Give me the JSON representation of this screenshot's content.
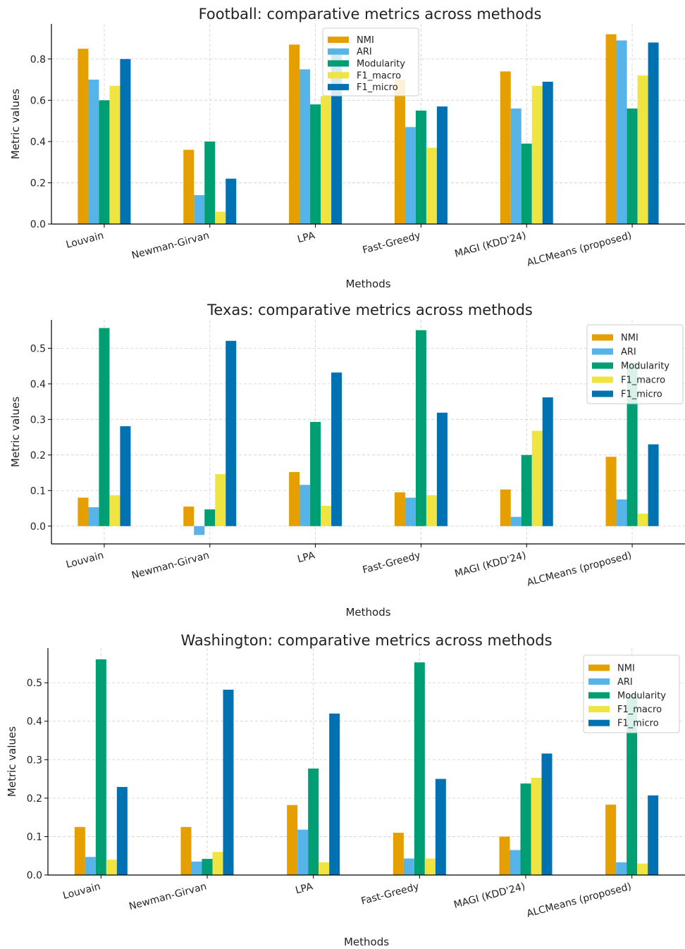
{
  "chart_data": [
    {
      "type": "bar",
      "title": "Football: comparative metrics across methods",
      "xlabel": "Methods",
      "ylabel": "Metric values",
      "categories": [
        "Louvain",
        "Newman-Girvan",
        "LPA",
        "Fast-Greedy",
        "MAGI (KDD'24)",
        "ALCMeans (proposed)"
      ],
      "ylim": [
        0,
        0.97
      ],
      "yticks": [
        "0.0",
        "0.2",
        "0.4",
        "0.6",
        "0.8"
      ],
      "legend": "top-center",
      "grid": true,
      "series": [
        {
          "name": "NMI",
          "color": "#E69F00",
          "values": [
            0.85,
            0.36,
            0.87,
            0.7,
            0.74,
            0.92
          ]
        },
        {
          "name": "ARI",
          "color": "#56B4E9",
          "values": [
            0.7,
            0.14,
            0.75,
            0.47,
            0.56,
            0.89
          ]
        },
        {
          "name": "Modularity",
          "color": "#009E73",
          "values": [
            0.6,
            0.4,
            0.58,
            0.55,
            0.39,
            0.56
          ]
        },
        {
          "name": "F1_macro",
          "color": "#F0E442",
          "values": [
            0.67,
            0.06,
            0.62,
            0.37,
            0.67,
            0.72
          ]
        },
        {
          "name": "F1_micro",
          "color": "#0072B2",
          "values": [
            0.8,
            0.22,
            0.82,
            0.57,
            0.69,
            0.88
          ]
        }
      ]
    },
    {
      "type": "bar",
      "title": "Texas: comparative metrics across methods",
      "xlabel": "Methods",
      "ylabel": "Metric values",
      "categories": [
        "Louvain",
        "Newman-Girvan",
        "LPA",
        "Fast-Greedy",
        "MAGI (KDD'24)",
        "ALCMeans (proposed)"
      ],
      "ylim": [
        -0.05,
        0.58
      ],
      "yticks": [
        "0.0",
        "0.1",
        "0.2",
        "0.3",
        "0.4",
        "0.5"
      ],
      "legend": "top-right",
      "grid": true,
      "series": [
        {
          "name": "NMI",
          "color": "#E69F00",
          "values": [
            0.08,
            0.055,
            0.152,
            0.095,
            0.103,
            0.195
          ]
        },
        {
          "name": "ARI",
          "color": "#56B4E9",
          "values": [
            0.053,
            -0.025,
            0.116,
            0.08,
            0.026,
            0.075
          ]
        },
        {
          "name": "Modularity",
          "color": "#009E73",
          "values": [
            0.557,
            0.047,
            0.293,
            0.551,
            0.2,
            0.46
          ]
        },
        {
          "name": "F1_macro",
          "color": "#F0E442",
          "values": [
            0.087,
            0.146,
            0.057,
            0.087,
            0.268,
            0.035
          ]
        },
        {
          "name": "F1_micro",
          "color": "#0072B2",
          "values": [
            0.281,
            0.521,
            0.432,
            0.319,
            0.362,
            0.23
          ]
        }
      ]
    },
    {
      "type": "bar",
      "title": "Washington: comparative metrics across methods",
      "xlabel": "Methods",
      "ylabel": "Metric values",
      "categories": [
        "Louvain",
        "Newman-Girvan",
        "LPA",
        "Fast-Greedy",
        "MAGI (KDD'24)",
        "ALCMeans (proposed)"
      ],
      "ylim": [
        0,
        0.59
      ],
      "yticks": [
        "0.0",
        "0.1",
        "0.2",
        "0.3",
        "0.4",
        "0.5"
      ],
      "legend": "top-right",
      "grid": true,
      "series": [
        {
          "name": "NMI",
          "color": "#E69F00",
          "values": [
            0.125,
            0.125,
            0.182,
            0.11,
            0.1,
            0.183
          ]
        },
        {
          "name": "ARI",
          "color": "#56B4E9",
          "values": [
            0.047,
            0.035,
            0.118,
            0.043,
            0.065,
            0.033
          ]
        },
        {
          "name": "Modularity",
          "color": "#009E73",
          "values": [
            0.561,
            0.042,
            0.277,
            0.553,
            0.238,
            0.47
          ]
        },
        {
          "name": "F1_macro",
          "color": "#F0E442",
          "values": [
            0.04,
            0.06,
            0.033,
            0.043,
            0.253,
            0.03
          ]
        },
        {
          "name": "F1_micro",
          "color": "#0072B2",
          "values": [
            0.229,
            0.482,
            0.42,
            0.25,
            0.316,
            0.207
          ]
        }
      ]
    }
  ]
}
